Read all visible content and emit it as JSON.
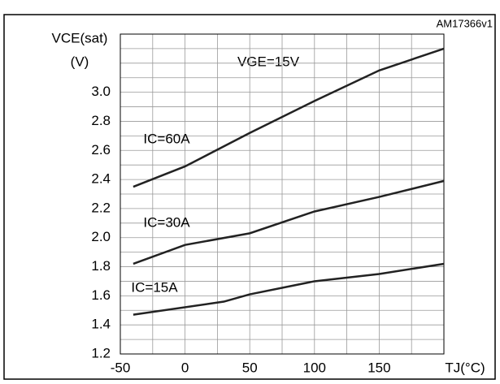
{
  "chart_data": {
    "type": "line",
    "code": "AM17366v1",
    "ylabel": "VCE(sat)",
    "yunit": "(V)",
    "xlabel": "TJ(°C)",
    "annotations": [
      "VGE=15V"
    ],
    "xlim": [
      -50,
      200
    ],
    "xticks": [
      -50,
      0,
      50,
      100,
      150
    ],
    "xminor": [
      -25,
      25,
      75,
      125,
      175
    ],
    "ylim": [
      1.2,
      3.4
    ],
    "yticks": [
      1.2,
      1.4,
      1.6,
      1.8,
      2.0,
      2.2,
      2.4,
      2.6,
      2.8,
      3.0
    ],
    "yminor": [
      1.3,
      1.5,
      1.7,
      1.9,
      2.1,
      2.3,
      2.5,
      2.7,
      2.9,
      3.1,
      3.2,
      3.3
    ],
    "grid": true,
    "series": [
      {
        "name": "IC=60A",
        "color": "#222222",
        "x": [
          -40,
          0,
          50,
          100,
          150,
          200
        ],
        "values": [
          2.35,
          2.49,
          2.72,
          2.94,
          3.15,
          3.3
        ]
      },
      {
        "name": "IC=30A",
        "color": "#222222",
        "x": [
          -40,
          0,
          50,
          100,
          150,
          200
        ],
        "values": [
          1.82,
          1.95,
          2.03,
          2.18,
          2.28,
          2.39
        ]
      },
      {
        "name": "IC=15A",
        "color": "#222222",
        "x": [
          -40,
          30,
          50,
          100,
          150,
          200
        ],
        "values": [
          1.47,
          1.56,
          1.61,
          1.7,
          1.75,
          1.82
        ]
      }
    ]
  }
}
